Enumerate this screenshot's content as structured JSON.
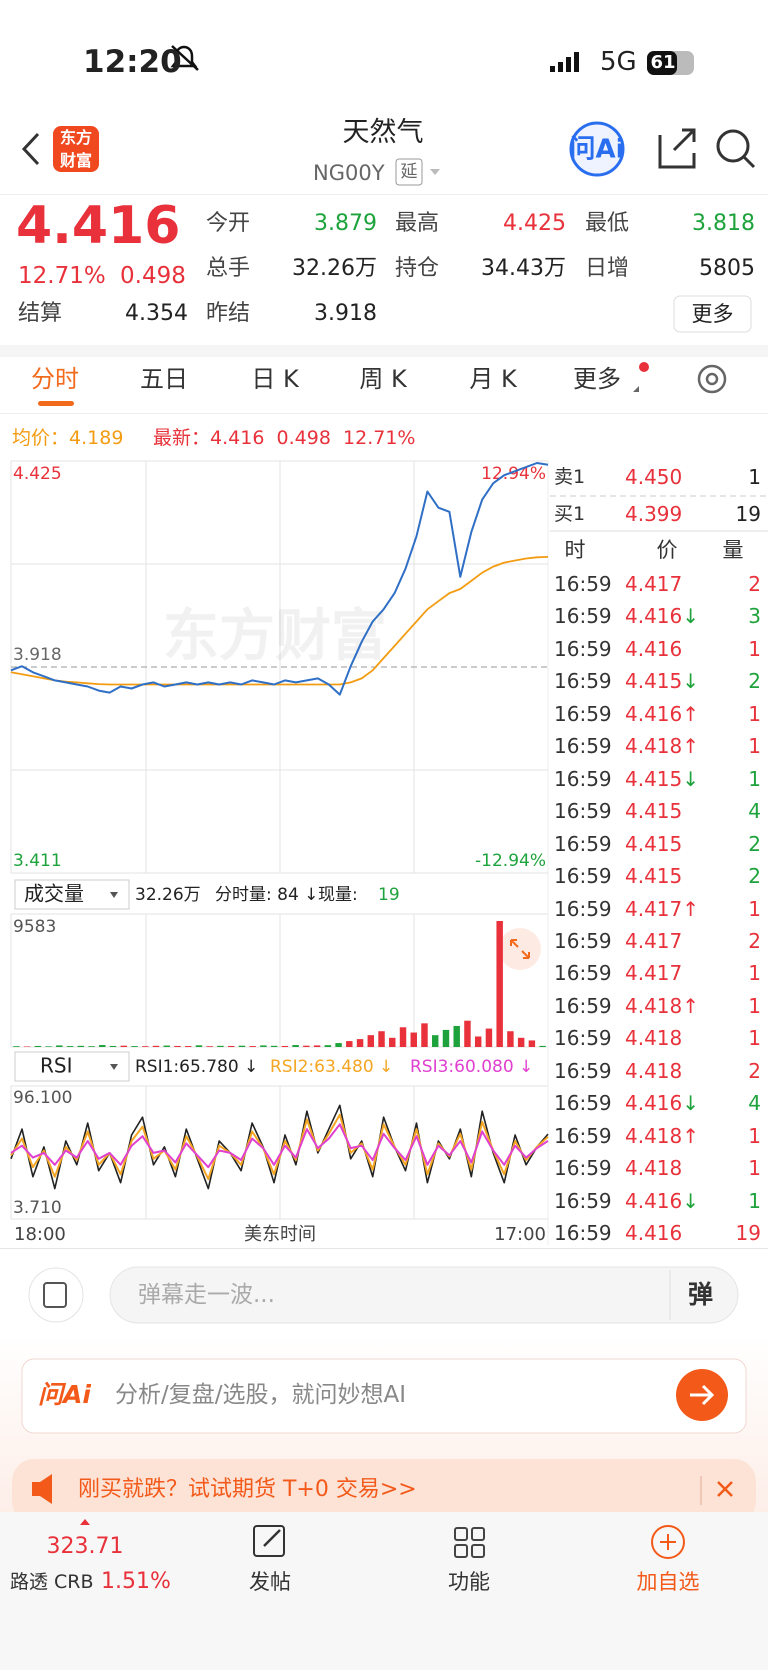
{
  "status_bar": {
    "time": "12:20",
    "network": "5G",
    "battery": "61"
  },
  "header": {
    "logo": [
      "东方",
      "财富"
    ],
    "title": "天然气",
    "code": "NG00Y",
    "badge": "延"
  },
  "quote": {
    "price": "4.416",
    "change_pct": "12.71%",
    "change": "0.498",
    "more_button": "更多",
    "fields": [
      {
        "label": "今开",
        "value": "3.879",
        "color": "#1ea33c"
      },
      {
        "label": "最高",
        "value": "4.425",
        "color": "#e8313a"
      },
      {
        "label": "最低",
        "value": "3.818",
        "color": "#1ea33c"
      },
      {
        "label": "总手",
        "value": "32.26万",
        "color": "#222222"
      },
      {
        "label": "持仓",
        "value": "34.43万",
        "color": "#222222"
      },
      {
        "label": "日增",
        "value": "5805",
        "color": "#222222"
      },
      {
        "label": "结算",
        "value": "4.354",
        "color": "#222222"
      },
      {
        "label": "昨结",
        "value": "3.918",
        "color": "#222222"
      }
    ]
  },
  "tabs": [
    "分时",
    "五日",
    "日 K",
    "周 K",
    "月 K",
    "更多"
  ],
  "info_line": {
    "avg_label": "均价：",
    "avg": "4.189",
    "last_label": "最新：",
    "last": "4.416",
    "change": "0.498",
    "change_pct": "12.71%"
  },
  "order_book": [
    {
      "label": "卖1",
      "price": "4.450",
      "qty": "1"
    },
    {
      "label": "买1",
      "price": "4.399",
      "qty": "19"
    }
  ],
  "trades": {
    "headers": [
      "时",
      "价",
      "量"
    ],
    "rows": [
      {
        "time": "16:59",
        "price": "4.417",
        "qty": "2",
        "qty_color": "#e8313a"
      },
      {
        "time": "16:59",
        "price": "4.416",
        "arrow": "↓",
        "arrow_color": "#1ea33c",
        "qty": "3",
        "qty_color": "#1ea33c"
      },
      {
        "time": "16:59",
        "price": "4.416",
        "qty": "1",
        "qty_color": "#e8313a"
      },
      {
        "time": "16:59",
        "price": "4.415",
        "arrow": "↓",
        "arrow_color": "#1ea33c",
        "qty": "2",
        "qty_color": "#1ea33c"
      },
      {
        "time": "16:59",
        "price": "4.416",
        "arrow": "↑",
        "arrow_color": "#e8313a",
        "qty": "1",
        "qty_color": "#e8313a"
      },
      {
        "time": "16:59",
        "price": "4.418",
        "arrow": "↑",
        "arrow_color": "#e8313a",
        "qty": "1",
        "qty_color": "#e8313a"
      },
      {
        "time": "16:59",
        "price": "4.415",
        "arrow": "↓",
        "arrow_color": "#1ea33c",
        "qty": "1",
        "qty_color": "#1ea33c"
      },
      {
        "time": "16:59",
        "price": "4.415",
        "qty": "4",
        "qty_color": "#1ea33c"
      },
      {
        "time": "16:59",
        "price": "4.415",
        "qty": "2",
        "qty_color": "#1ea33c"
      },
      {
        "time": "16:59",
        "price": "4.415",
        "qty": "2",
        "qty_color": "#1ea33c"
      },
      {
        "time": "16:59",
        "price": "4.417",
        "arrow": "↑",
        "arrow_color": "#e8313a",
        "qty": "1",
        "qty_color": "#e8313a"
      },
      {
        "time": "16:59",
        "price": "4.417",
        "qty": "2",
        "qty_color": "#e8313a"
      },
      {
        "time": "16:59",
        "price": "4.417",
        "qty": "1",
        "qty_color": "#e8313a"
      },
      {
        "time": "16:59",
        "price": "4.418",
        "arrow": "↑",
        "arrow_color": "#e8313a",
        "qty": "1",
        "qty_color": "#e8313a"
      },
      {
        "time": "16:59",
        "price": "4.418",
        "qty": "1",
        "qty_color": "#e8313a"
      },
      {
        "time": "16:59",
        "price": "4.418",
        "qty": "2",
        "qty_color": "#e8313a"
      },
      {
        "time": "16:59",
        "price": "4.416",
        "arrow": "↓",
        "arrow_color": "#1ea33c",
        "qty": "4",
        "qty_color": "#1ea33c"
      },
      {
        "time": "16:59",
        "price": "4.418",
        "arrow": "↑",
        "arrow_color": "#e8313a",
        "qty": "1",
        "qty_color": "#e8313a"
      },
      {
        "time": "16:59",
        "price": "4.418",
        "qty": "1",
        "qty_color": "#e8313a"
      },
      {
        "time": "16:59",
        "price": "4.416",
        "arrow": "↓",
        "arrow_color": "#1ea33c",
        "qty": "1",
        "qty_color": "#1ea33c"
      },
      {
        "time": "16:59",
        "price": "4.416",
        "qty": "19",
        "qty_color": "#e8313a"
      }
    ]
  },
  "chart_data": [
    {
      "type": "line",
      "watermark": "东方财富",
      "ylim": [
        3.411,
        4.425
      ],
      "yticks": [
        3.411,
        3.918,
        4.425
      ],
      "y2lim": [
        -12.94,
        12.94
      ],
      "y2ticks": [
        {
          "value": -12.94,
          "label": "-12.94%"
        },
        {
          "value": 12.94,
          "label": "12.94%"
        }
      ],
      "x_labels": [
        "18:00",
        "美东时间",
        "17:00"
      ],
      "up_color": "#e8313a",
      "down_color": "#1ea33c",
      "series": [
        {
          "color": "#2f6fc6",
          "values": [
            3.91,
            3.92,
            3.905,
            3.895,
            3.885,
            3.88,
            3.875,
            3.87,
            3.86,
            3.855,
            3.87,
            3.865,
            3.875,
            3.88,
            3.87,
            3.875,
            3.88,
            3.875,
            3.88,
            3.875,
            3.88,
            3.875,
            3.885,
            3.88,
            3.875,
            3.885,
            3.88,
            3.885,
            3.89,
            3.875,
            3.85,
            3.92,
            3.98,
            4.03,
            4.06,
            4.1,
            4.16,
            4.24,
            4.35,
            4.31,
            4.3,
            4.14,
            4.25,
            4.33,
            4.37,
            4.39,
            4.4,
            4.41,
            4.42,
            4.416
          ]
        },
        {
          "color": "#f39c12",
          "values": [
            3.905,
            3.9,
            3.895,
            3.89,
            3.885,
            3.882,
            3.88,
            3.878,
            3.876,
            3.875,
            3.875,
            3.875,
            3.875,
            3.875,
            3.875,
            3.875,
            3.875,
            3.875,
            3.875,
            3.875,
            3.875,
            3.875,
            3.875,
            3.875,
            3.875,
            3.875,
            3.875,
            3.875,
            3.875,
            3.875,
            3.875,
            3.88,
            3.89,
            3.91,
            3.94,
            3.97,
            4.0,
            4.03,
            4.06,
            4.08,
            4.1,
            4.11,
            4.13,
            4.15,
            4.165,
            4.175,
            4.18,
            4.185,
            4.188,
            4.189
          ]
        }
      ]
    },
    {
      "type": "bar",
      "selector": "成交量",
      "summary": [
        "32.26万",
        "分时量: 84 ↓",
        "现量:",
        "19"
      ],
      "ylim": [
        0,
        9583
      ],
      "yticks": [
        9583
      ],
      "values": [
        60,
        40,
        80,
        50,
        120,
        70,
        90,
        60,
        150,
        80,
        100,
        70,
        60,
        90,
        110,
        80,
        70,
        130,
        60,
        90,
        80,
        100,
        70,
        120,
        90,
        80,
        150,
        100,
        120,
        140,
        300,
        450,
        600,
        900,
        1200,
        700,
        1500,
        1100,
        1800,
        900,
        1300,
        1600,
        2000,
        800,
        1400,
        9583,
        1200,
        700,
        500,
        84
      ]
    },
    {
      "type": "line",
      "selector": "RSI",
      "ylim": [
        3.71,
        96.1
      ],
      "yticks": [
        {
          "value": 3.71,
          "label": "3.710"
        },
        {
          "value": 96.1,
          "label": "96.100"
        }
      ],
      "series": [
        {
          "label": "RSI1:65.780 ↓",
          "color": "#222222",
          "values": [
            45,
            70,
            30,
            55,
            20,
            60,
            40,
            75,
            35,
            50,
            25,
            65,
            80,
            40,
            55,
            30,
            70,
            45,
            20,
            60,
            50,
            35,
            75,
            55,
            25,
            65,
            40,
            85,
            50,
            70,
            90,
            45,
            60,
            30,
            80,
            55,
            35,
            75,
            25,
            60,
            45,
            70,
            30,
            85,
            50,
            25,
            65,
            40,
            55,
            65.78
          ]
        },
        {
          "label": "RSI2:63.480 ↓",
          "color": "#f5a623",
          "values": [
            48,
            62,
            38,
            52,
            30,
            55,
            44,
            68,
            40,
            50,
            32,
            60,
            72,
            45,
            52,
            36,
            64,
            47,
            28,
            56,
            50,
            40,
            68,
            54,
            32,
            60,
            44,
            78,
            52,
            66,
            82,
            50,
            58,
            36,
            74,
            55,
            40,
            70,
            32,
            58,
            47,
            66,
            36,
            76,
            52,
            32,
            60,
            44,
            55,
            63.48
          ]
        },
        {
          "label": "RSI3:60.080 ↓",
          "color": "#e040d0",
          "values": [
            50,
            56,
            46,
            50,
            40,
            52,
            46,
            60,
            45,
            50,
            40,
            56,
            64,
            50,
            52,
            42,
            58,
            48,
            38,
            52,
            50,
            44,
            62,
            54,
            40,
            56,
            46,
            70,
            54,
            62,
            74,
            54,
            56,
            44,
            66,
            54,
            44,
            64,
            40,
            56,
            48,
            60,
            42,
            68,
            52,
            40,
            56,
            46,
            54,
            60.08
          ]
        }
      ]
    }
  ],
  "comment_bar": {
    "placeholder": "弹幕走一波...",
    "button": "弹"
  },
  "ai_bar": {
    "brand": "问Ai",
    "placeholder": "分析/复盘/选股，就问妙想AI"
  },
  "promo": {
    "text": "刚买就跌？试试期货 T+0 交易>>"
  },
  "bottom_nav": {
    "index": {
      "value": "323.71",
      "name": "路透 CRB",
      "change": "1.51%"
    },
    "items": [
      "发帖",
      "功能",
      "加自选"
    ]
  }
}
